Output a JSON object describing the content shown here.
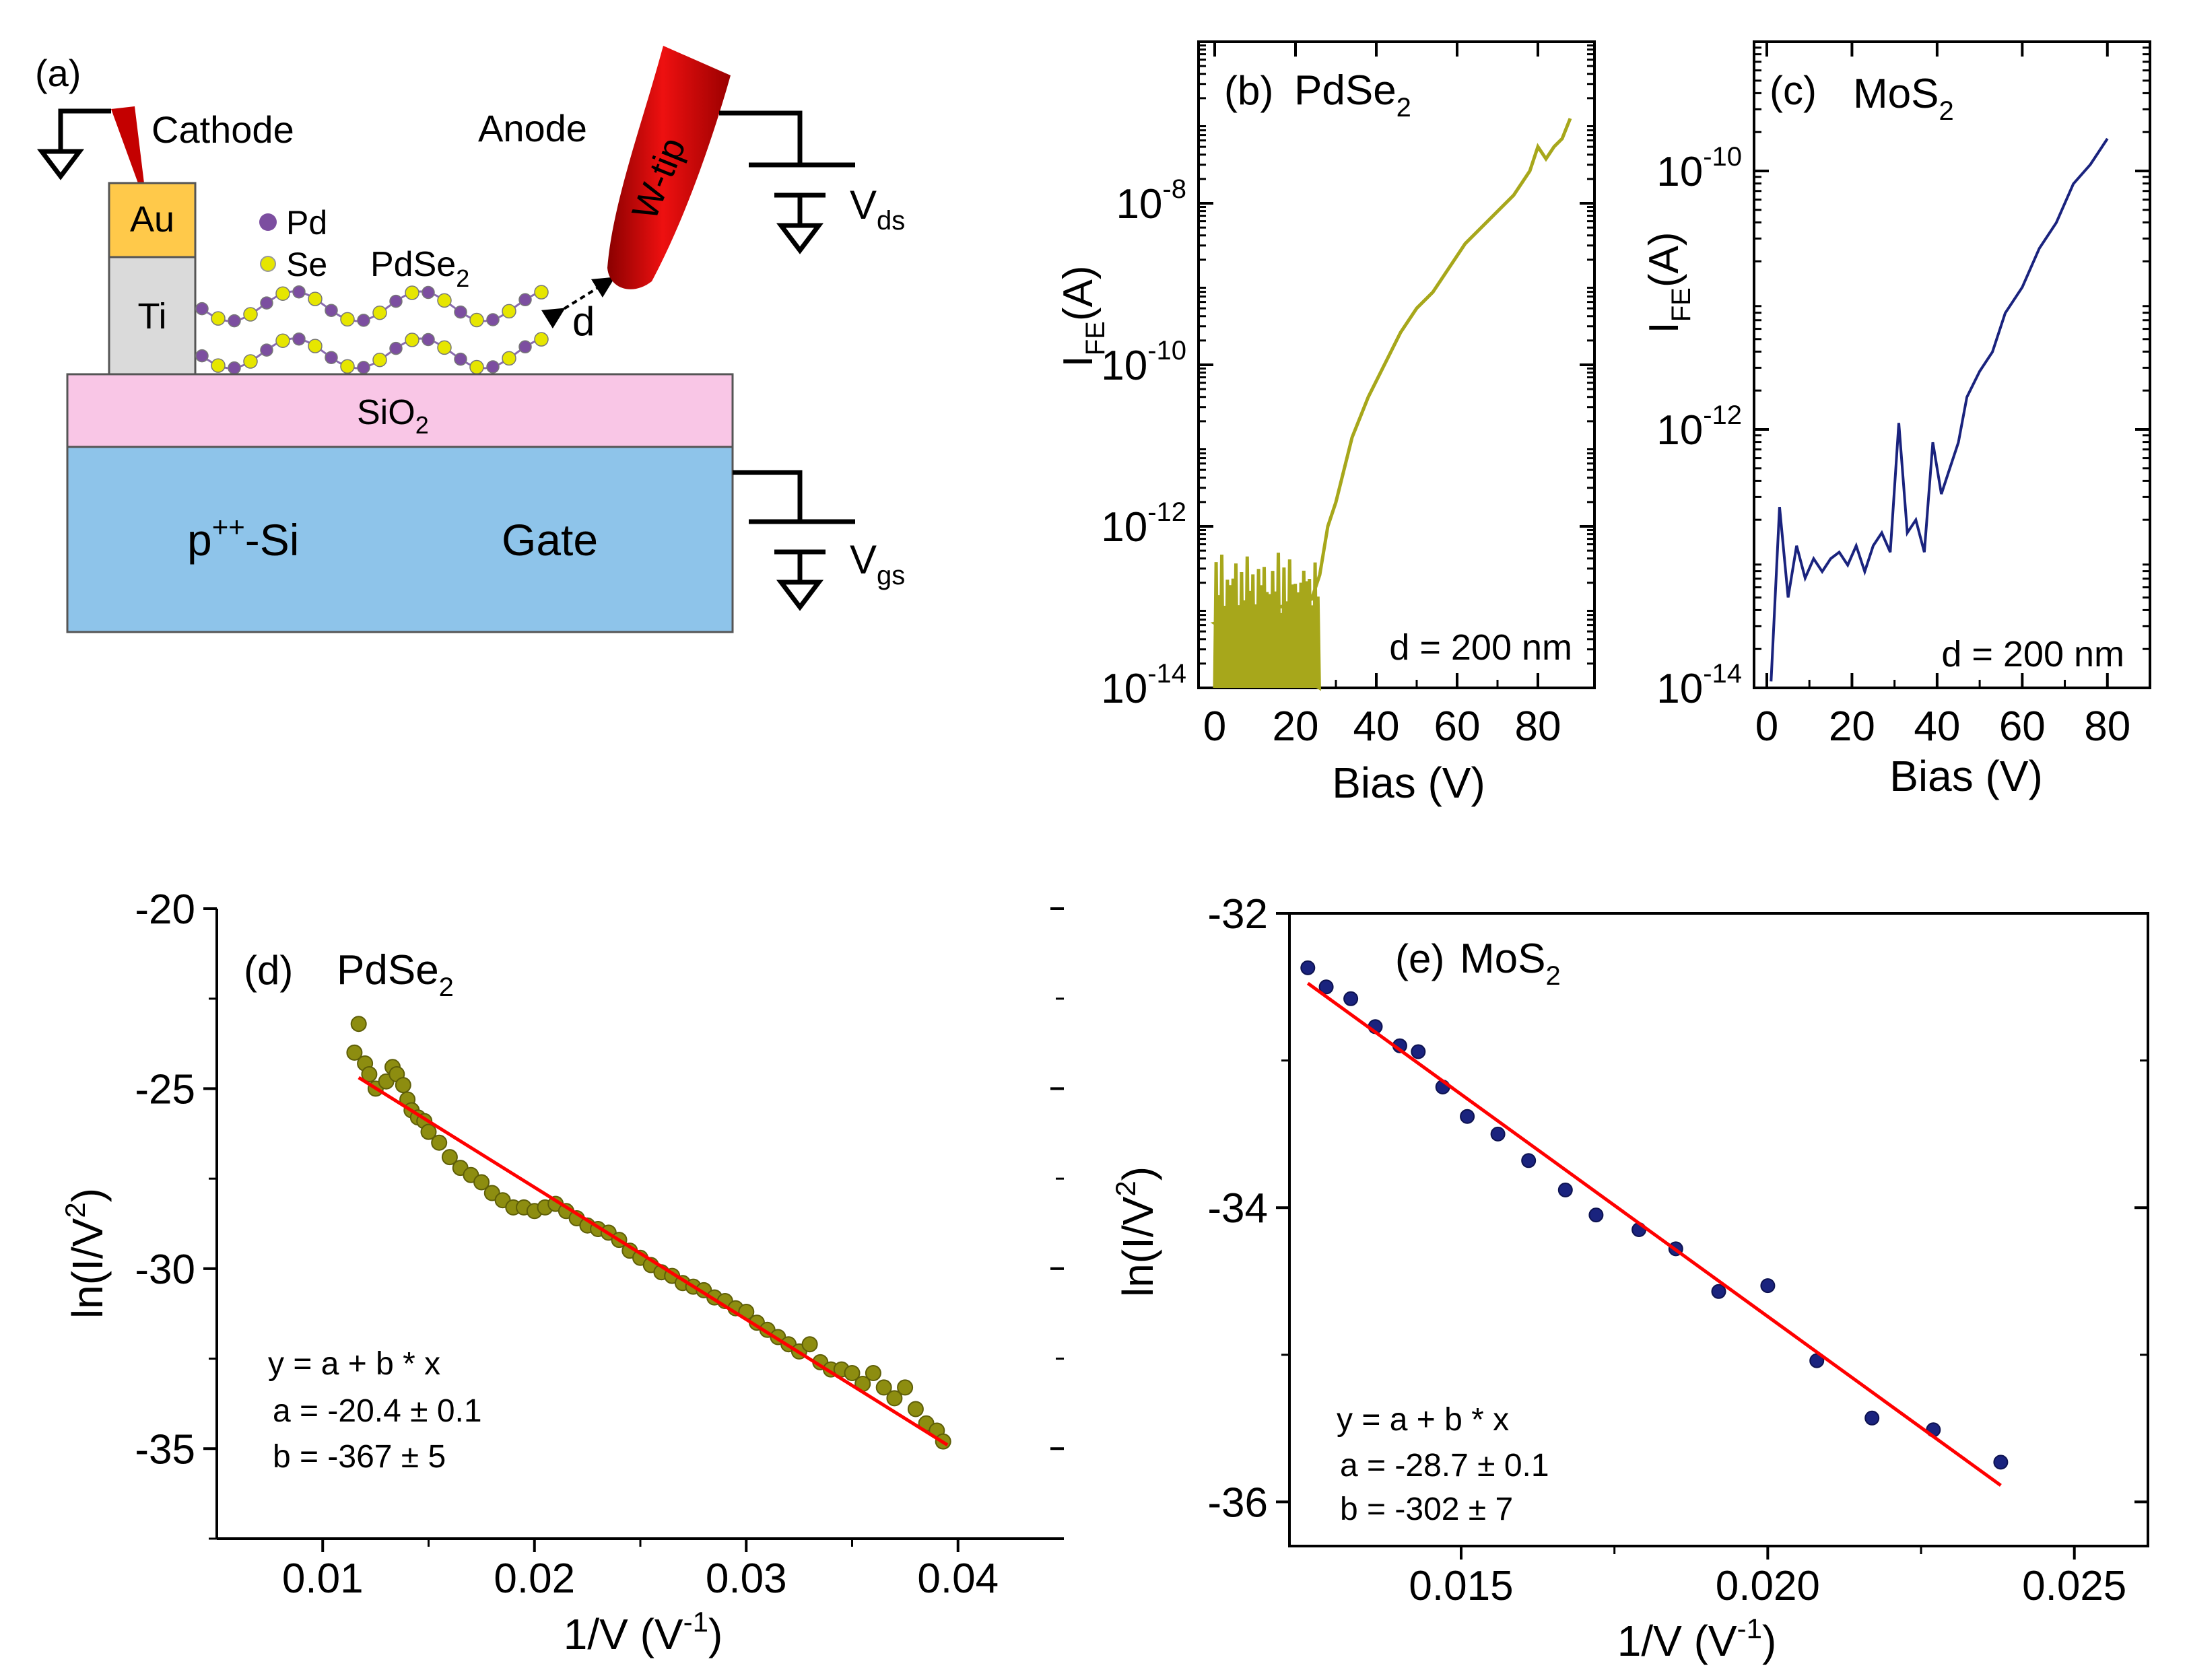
{
  "panel_a": {
    "label": "(a)",
    "cathode": "Cathode",
    "anode": "Anode",
    "w_tip": "W-tip",
    "au": "Au",
    "ti": "Ti",
    "legend_pd": "Pd",
    "legend_se": "Se",
    "material_base": "PdSe",
    "material_sub": "2",
    "gap_label": "d",
    "sio2_base": "SiO",
    "sio2_sub": "2",
    "si_base": "p",
    "si_sup": "++",
    "si_rest": "-Si",
    "gate": "Gate",
    "vds_base": "V",
    "vds_sub": "ds",
    "vgs_base": "V",
    "vgs_sub": "gs",
    "colors": {
      "tip": "#d10000",
      "au": "#ffc94a",
      "ti": "#dadada",
      "sio2": "#f9c6e6",
      "si": "#8ec4ea",
      "pd": "#7c4ea0",
      "se": "#e6e600"
    }
  },
  "chart_data": [
    {
      "id": "b",
      "type": "line",
      "panel_label": "(b)",
      "title_base": "PdSe",
      "title_sub": "2",
      "xlabel": "Bias (V)",
      "ylabel_base": "I",
      "ylabel_sub": "FE",
      "ylabel_rest": "(A)",
      "yscale": "log",
      "xlim": [
        -4,
        94
      ],
      "ylim_exp": [
        -14,
        -6
      ],
      "xticks": [
        "0",
        "20",
        "40",
        "60",
        "80"
      ],
      "yticks": [
        {
          "base": "10",
          "exp": "-8"
        },
        {
          "base": "10",
          "exp": "-10"
        },
        {
          "base": "10",
          "exp": "-12"
        },
        {
          "base": "10",
          "exp": "-14"
        }
      ],
      "annotation": "d = 200 nm",
      "color": "#a7a71b",
      "series": [
        {
          "name": "PdSe2",
          "x": [
            0,
            24,
            26,
            28,
            30,
            34,
            38,
            42,
            46,
            50,
            54,
            58,
            62,
            66,
            70,
            74,
            78,
            80,
            82,
            84,
            86,
            88
          ],
          "log10_y": [
            -13.2,
            -12.9,
            -12.6,
            -12.0,
            -11.7,
            -10.9,
            -10.4,
            -10.0,
            -9.6,
            -9.3,
            -9.1,
            -8.8,
            -8.5,
            -8.3,
            -8.1,
            -7.9,
            -7.6,
            -7.3,
            -7.45,
            -7.3,
            -7.2,
            -6.95
          ]
        }
      ]
    },
    {
      "id": "c",
      "type": "line",
      "panel_label": "(c)",
      "title_base": "MoS",
      "title_sub": "2",
      "xlabel": "Bias (V)",
      "ylabel_base": "I",
      "ylabel_sub": "FE",
      "ylabel_rest": "(A)",
      "yscale": "log",
      "xlim": [
        -3,
        90
      ],
      "ylim_exp": [
        -14,
        -9
      ],
      "xticks": [
        "0",
        "20",
        "40",
        "60",
        "80"
      ],
      "yticks": [
        {
          "base": "10",
          "exp": "-10"
        },
        {
          "base": "10",
          "exp": "-12"
        },
        {
          "base": "10",
          "exp": "-14"
        }
      ],
      "annotation": "d = 200 nm",
      "color": "#1a237e",
      "series": [
        {
          "name": "MoS2",
          "x": [
            1,
            3,
            5,
            7,
            9,
            11,
            13,
            15,
            17,
            19,
            21,
            23,
            25,
            27,
            29,
            31,
            33,
            35,
            37,
            39,
            41,
            43,
            45,
            47,
            50,
            53,
            56,
            60,
            64,
            68,
            72,
            76,
            80
          ],
          "log10_y": [
            -13.95,
            -12.6,
            -13.3,
            -12.9,
            -13.15,
            -13.0,
            -13.1,
            -13.0,
            -12.95,
            -13.05,
            -12.9,
            -13.1,
            -12.9,
            -12.8,
            -12.95,
            -11.95,
            -12.8,
            -12.7,
            -12.95,
            -12.1,
            -12.5,
            -12.3,
            -12.1,
            -11.75,
            -11.55,
            -11.4,
            -11.1,
            -10.9,
            -10.6,
            -10.4,
            -10.1,
            -9.95,
            -9.75
          ]
        }
      ]
    },
    {
      "id": "d",
      "type": "scatter",
      "panel_label": "(d)",
      "title_base": "PdSe",
      "title_sub": "2",
      "xlabel_base": "1/V (V",
      "xlabel_sup": "-1",
      "xlabel_rest": ")",
      "ylabel_base": "ln(I/V",
      "ylabel_sup": "2",
      "ylabel_rest": ")",
      "xlim": [
        0.005,
        0.045
      ],
      "ylim": [
        -37.5,
        -20
      ],
      "xticks": [
        "0.01",
        "0.02",
        "0.03",
        "0.04"
      ],
      "yticks": [
        "-20",
        "-25",
        "-30",
        "-35"
      ],
      "fit": {
        "a": -20.4,
        "b": -367,
        "x_range": [
          0.0117,
          0.0395
        ]
      },
      "fit_text": [
        "y = a + b * x",
        "a = -20.4 ± 0.1",
        "b = -367 ± 5"
      ],
      "point_color": "#8d8d10",
      "fit_color": "#ff0000",
      "series": [
        {
          "name": "PdSe2",
          "x": [
            0.0115,
            0.0117,
            0.012,
            0.0122,
            0.0125,
            0.013,
            0.0133,
            0.0135,
            0.0138,
            0.014,
            0.0142,
            0.0145,
            0.0148,
            0.015,
            0.0155,
            0.016,
            0.0165,
            0.017,
            0.0175,
            0.018,
            0.0185,
            0.019,
            0.0195,
            0.02,
            0.0205,
            0.021,
            0.0215,
            0.022,
            0.0225,
            0.023,
            0.0235,
            0.024,
            0.0245,
            0.025,
            0.0255,
            0.026,
            0.0265,
            0.027,
            0.0275,
            0.028,
            0.0285,
            0.029,
            0.0295,
            0.03,
            0.0305,
            0.031,
            0.0315,
            0.032,
            0.0325,
            0.033,
            0.0335,
            0.034,
            0.0345,
            0.035,
            0.0355,
            0.036,
            0.0365,
            0.037,
            0.0375,
            0.038,
            0.0385,
            0.039,
            0.0393
          ],
          "y": [
            -24,
            -23.2,
            -24.3,
            -24.6,
            -25.0,
            -24.8,
            -24.4,
            -24.6,
            -24.9,
            -25.3,
            -25.6,
            -25.8,
            -25.9,
            -26.2,
            -26.5,
            -26.9,
            -27.2,
            -27.4,
            -27.6,
            -27.9,
            -28.1,
            -28.3,
            -28.3,
            -28.4,
            -28.3,
            -28.2,
            -28.4,
            -28.6,
            -28.8,
            -28.9,
            -29.0,
            -29.2,
            -29.5,
            -29.7,
            -29.9,
            -30.1,
            -30.2,
            -30.4,
            -30.5,
            -30.6,
            -30.8,
            -30.9,
            -31.1,
            -31.2,
            -31.5,
            -31.7,
            -31.9,
            -32.1,
            -32.3,
            -32.1,
            -32.6,
            -32.8,
            -32.8,
            -32.9,
            -33.2,
            -32.9,
            -33.3,
            -33.6,
            -33.3,
            -33.9,
            -34.3,
            -34.5,
            -34.8
          ]
        }
      ]
    },
    {
      "id": "e",
      "type": "scatter",
      "panel_label": "(e)",
      "title_base": "MoS",
      "title_sub": "2",
      "xlabel_base": "1/V (V",
      "xlabel_sup": "-1",
      "xlabel_rest": ")",
      "ylabel_base": "ln(I/V",
      "ylabel_sup": "2",
      "ylabel_rest": ")",
      "xlim": [
        0.0122,
        0.0262
      ],
      "ylim": [
        -36.3,
        -32
      ],
      "xticks": [
        "0.015",
        "0.020",
        "0.025"
      ],
      "yticks": [
        "-32",
        "-34",
        "-36"
      ],
      "fit": {
        "a": -28.7,
        "b": -302,
        "x_range": [
          0.0125,
          0.0238
        ]
      },
      "fit_text": [
        "y = a + b * x",
        "a = -28.7 ± 0.1",
        "b = -302 ± 7"
      ],
      "point_color": "#1a237e",
      "fit_color": "#ff0000",
      "series": [
        {
          "name": "MoS2",
          "x": [
            0.0125,
            0.0128,
            0.0132,
            0.0136,
            0.014,
            0.0143,
            0.0147,
            0.0151,
            0.0156,
            0.0161,
            0.0167,
            0.0172,
            0.0179,
            0.0185,
            0.0192,
            0.02,
            0.0208,
            0.0217,
            0.0227,
            0.0238
          ],
          "y": [
            -32.37,
            -32.5,
            -32.58,
            -32.77,
            -32.9,
            -32.94,
            -33.18,
            -33.38,
            -33.5,
            -33.68,
            -33.88,
            -34.05,
            -34.15,
            -34.28,
            -34.57,
            -34.53,
            -35.04,
            -35.43,
            -35.51,
            -35.73
          ]
        }
      ]
    }
  ]
}
